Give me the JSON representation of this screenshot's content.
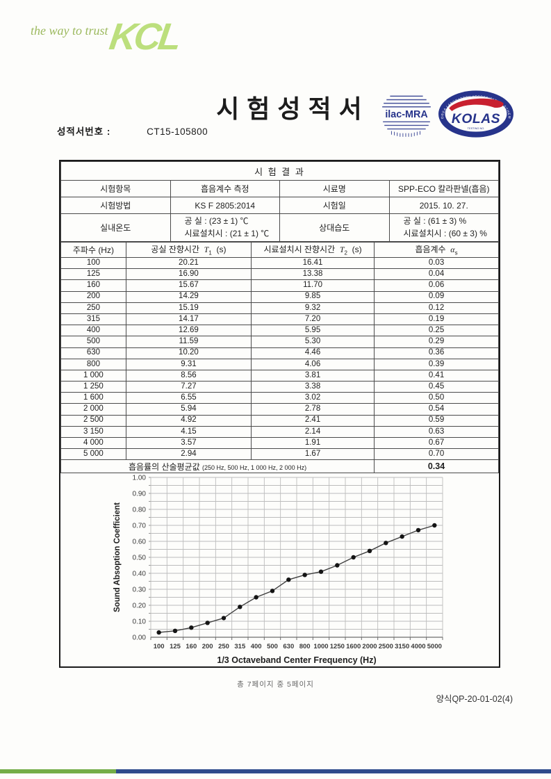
{
  "logo": {
    "tagline": "the way to trust",
    "brand": "KCL"
  },
  "title": "시험성적서",
  "report": {
    "label": "성적서번호 :",
    "number": "CT15-105800"
  },
  "stamps": {
    "ilac_text": "ilac-MRA",
    "kolas_text": "KOLAS",
    "kolas_ring_text": "KOREA LABORATORY ACCREDITATION SCHEME",
    "kolas_sub_text": "TESTING NO."
  },
  "results": {
    "section_title": "시 험 결 과",
    "info_rows": [
      {
        "label": "시험항목",
        "value": "흡음계수 측정",
        "label2": "시료명",
        "value2": "SPP-ECO 칼라판넬(흡음)"
      },
      {
        "label": "시험방법",
        "value": "KS F 2805:2014",
        "label2": "시험일",
        "value2": "2015. 10. 27."
      },
      {
        "label": "실내온도",
        "value": "공        실 : (23 ± 1) ℃\n시료설치시 : (21 ± 1) ℃",
        "label2": "상대습도",
        "value2": "공        실 : (61 ± 3) %\n시료설치시 : (60 ± 3) %"
      }
    ],
    "freq_table": {
      "headers": {
        "freq": "주파수 (Hz)",
        "t1": {
          "prefix": "공실 잔향시간",
          "symbol": "T",
          "sub": "1",
          "unit": "(s)"
        },
        "t2": {
          "prefix": "시료설치시 잔향시간",
          "symbol": "T",
          "sub": "2",
          "unit": "(s)"
        },
        "alpha": {
          "prefix": "흡음계수",
          "symbol": "α",
          "sub": "s",
          "unit": ""
        }
      },
      "rows": [
        [
          "100",
          "20.21",
          "16.41",
          "0.03"
        ],
        [
          "125",
          "16.90",
          "13.38",
          "0.04"
        ],
        [
          "160",
          "15.67",
          "11.70",
          "0.06"
        ],
        [
          "200",
          "14.29",
          "9.85",
          "0.09"
        ],
        [
          "250",
          "15.19",
          "9.32",
          "0.12"
        ],
        [
          "315",
          "14.17",
          "7.20",
          "0.19"
        ],
        [
          "400",
          "12.69",
          "5.95",
          "0.25"
        ],
        [
          "500",
          "11.59",
          "5.30",
          "0.29"
        ],
        [
          "630",
          "10.20",
          "4.46",
          "0.36"
        ],
        [
          "800",
          "9.31",
          "4.06",
          "0.39"
        ],
        [
          "1 000",
          "8.56",
          "3.81",
          "0.41"
        ],
        [
          "1 250",
          "7.27",
          "3.38",
          "0.45"
        ],
        [
          "1 600",
          "6.55",
          "3.02",
          "0.50"
        ],
        [
          "2 000",
          "5.94",
          "2.78",
          "0.54"
        ],
        [
          "2 500",
          "4.92",
          "2.41",
          "0.59"
        ],
        [
          "3 150",
          "4.15",
          "2.14",
          "0.63"
        ],
        [
          "4 000",
          "3.57",
          "1.91",
          "0.67"
        ],
        [
          "5 000",
          "2.94",
          "1.67",
          "0.70"
        ]
      ],
      "mean": {
        "label": "흡음률의 산술평균값",
        "note": "(250 Hz, 500 Hz, 1 000 Hz, 2 000 Hz)",
        "value": "0.34"
      }
    }
  },
  "chart_data": {
    "type": "line",
    "x": [
      "100",
      "125",
      "160",
      "200",
      "250",
      "315",
      "400",
      "500",
      "630",
      "800",
      "1000",
      "1250",
      "1600",
      "2000",
      "2500",
      "3150",
      "4000",
      "5000"
    ],
    "values": [
      0.03,
      0.04,
      0.06,
      0.09,
      0.12,
      0.19,
      0.25,
      0.29,
      0.36,
      0.39,
      0.41,
      0.45,
      0.5,
      0.54,
      0.59,
      0.63,
      0.67,
      0.7
    ],
    "title": "",
    "xlabel": "1/3 Octaveband Center Frequency (Hz)",
    "ylabel": "Sound Absoption Coefficient",
    "ylim": [
      0,
      1
    ],
    "ytick_step": 0.1,
    "minor_grid_step": 0.05,
    "grid": true,
    "legend": "none",
    "marker": "filled-circle"
  },
  "footer": {
    "page_info": "총 7페이지 중 5페이지",
    "form_no": "양식QP-20-01-02(4)"
  },
  "colors": {
    "logo_green": "#bcdf7d",
    "tagline_green": "#9cb95e",
    "stamp_navy": "#27348b",
    "kolas_red": "#c8202f",
    "bar_green": "#74ad47",
    "bar_navy": "#2e4a8b",
    "grid_gray": "#bcbcbc",
    "line_dark": "#3f3f3f"
  }
}
